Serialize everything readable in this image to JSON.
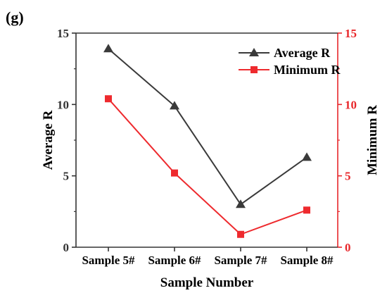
{
  "panel_label": "(g)",
  "colors": {
    "left_axis": "#333333",
    "right_axis": "#e8262a",
    "average": "#3a3a3a",
    "minimum": "#ee2a2e"
  },
  "chart_data": {
    "type": "line",
    "categories": [
      "Sample 5#",
      "Sample 6#",
      "Sample 7#",
      "Sample 8#"
    ],
    "xlabel": "Sample Number",
    "ylabel_left": "Average R",
    "ylabel_right": "Minimum R",
    "ylim_left": [
      0,
      15
    ],
    "ylim_right": [
      0,
      15
    ],
    "yticks_left": [
      "0",
      "5",
      "10",
      "15"
    ],
    "yticks_right": [
      "0",
      "5",
      "10",
      "15"
    ],
    "legend_position": "top-right",
    "grid": false,
    "series": [
      {
        "name": "Average R",
        "axis": "left",
        "marker": "triangle",
        "color": "#3a3a3a",
        "values": [
          13.9,
          9.9,
          3.0,
          6.3
        ]
      },
      {
        "name": "Minimum R",
        "axis": "right",
        "marker": "square",
        "color": "#ee2a2e",
        "values": [
          10.4,
          5.2,
          0.9,
          2.6
        ]
      }
    ]
  }
}
